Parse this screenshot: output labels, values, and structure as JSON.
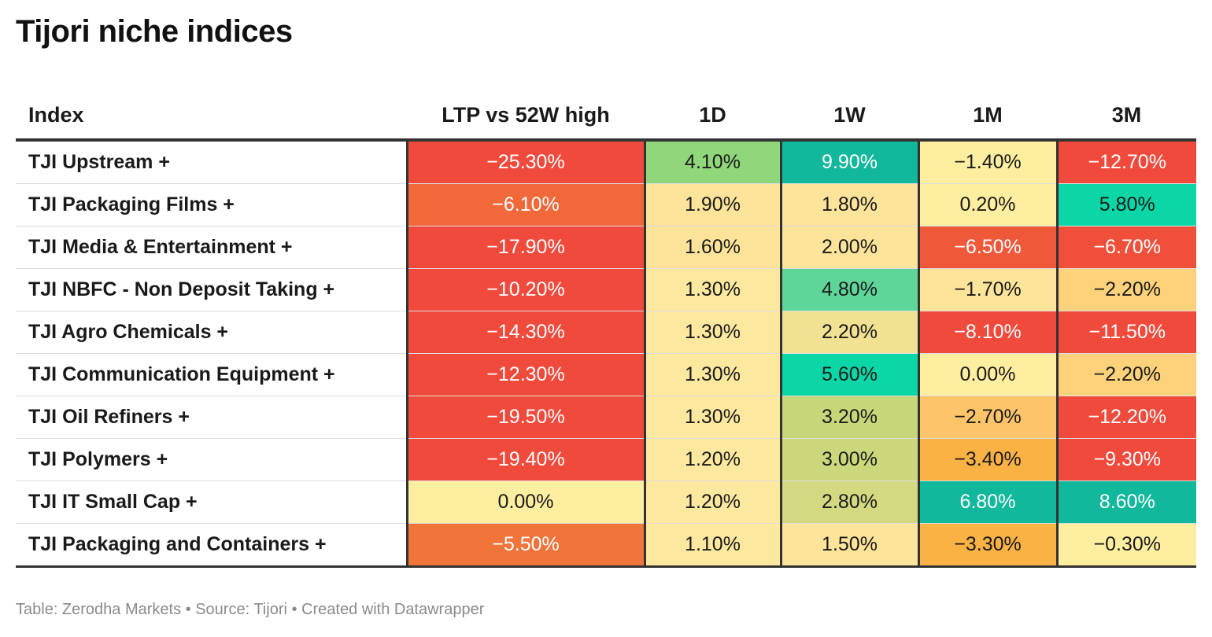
{
  "title": "Tijori niche indices",
  "footer": "Table: Zerodha Markets • Source: Tijori • Created with Datawrapper",
  "colors": {
    "deep_red": "#ef4a3c",
    "red_orange": "#f0583a",
    "orange": "#f1743a",
    "amber": "#fbb244",
    "light_amber": "#fdd27a",
    "pale_yellow": "#fdeea0",
    "olive": "#ccd77c",
    "light_green": "#90d67a",
    "mint": "#5ed69a",
    "teal": "#11b89c",
    "aqua": "#0bd6a6"
  },
  "chart_data": {
    "type": "table",
    "columns": [
      "Index",
      "LTP vs 52W high",
      "1D",
      "1W",
      "1M",
      "3M"
    ],
    "rows": [
      {
        "index": "TJI Upstream +",
        "values": [
          "−25.30%",
          "4.10%",
          "9.90%",
          "−1.40%",
          "−12.70%"
        ],
        "colors": [
          "#ef4a3c",
          "#90d67a",
          "#11b89c",
          "#fdeea0",
          "#ef4a3c"
        ],
        "text_colors": [
          "#ffffff",
          "#1a1a1a",
          "#ffffff",
          "#1a1a1a",
          "#ffffff"
        ]
      },
      {
        "index": "TJI Packaging Films +",
        "values": [
          "−6.10%",
          "1.90%",
          "1.80%",
          "0.20%",
          "5.80%"
        ],
        "colors": [
          "#f1693a",
          "#fde49a",
          "#fde49a",
          "#fdeea0",
          "#0bd6a6"
        ],
        "text_colors": [
          "#ffffff",
          "#1a1a1a",
          "#1a1a1a",
          "#1a1a1a",
          "#1a1a1a"
        ]
      },
      {
        "index": "TJI Media & Entertainment +",
        "values": [
          "−17.90%",
          "1.60%",
          "2.00%",
          "−6.50%",
          "−6.70%"
        ],
        "colors": [
          "#ef4a3c",
          "#fde49a",
          "#fde49a",
          "#f0583a",
          "#f0503a"
        ],
        "text_colors": [
          "#ffffff",
          "#1a1a1a",
          "#1a1a1a",
          "#ffffff",
          "#ffffff"
        ]
      },
      {
        "index": "TJI NBFC - Non Deposit Taking +",
        "values": [
          "−10.20%",
          "1.30%",
          "4.80%",
          "−1.70%",
          "−2.20%"
        ],
        "colors": [
          "#ef4a3c",
          "#fde8a0",
          "#5ed69a",
          "#fde49a",
          "#fdd27a"
        ],
        "text_colors": [
          "#ffffff",
          "#1a1a1a",
          "#1a1a1a",
          "#1a1a1a",
          "#1a1a1a"
        ]
      },
      {
        "index": "TJI Agro Chemicals +",
        "values": [
          "−14.30%",
          "1.30%",
          "2.20%",
          "−8.10%",
          "−11.50%"
        ],
        "colors": [
          "#ef4a3c",
          "#fde8a0",
          "#f1e192",
          "#ef4a3c",
          "#ef4a3c"
        ],
        "text_colors": [
          "#ffffff",
          "#1a1a1a",
          "#1a1a1a",
          "#ffffff",
          "#ffffff"
        ]
      },
      {
        "index": "TJI Communication Equipment +",
        "values": [
          "−12.30%",
          "1.30%",
          "5.60%",
          "0.00%",
          "−2.20%"
        ],
        "colors": [
          "#ef4a3c",
          "#fde8a0",
          "#0bd6a6",
          "#fdeea0",
          "#fdd27a"
        ],
        "text_colors": [
          "#ffffff",
          "#1a1a1a",
          "#1a1a1a",
          "#1a1a1a",
          "#1a1a1a"
        ]
      },
      {
        "index": "TJI Oil Refiners +",
        "values": [
          "−19.50%",
          "1.30%",
          "3.20%",
          "−2.70%",
          "−12.20%"
        ],
        "colors": [
          "#ef4a3c",
          "#fde8a0",
          "#c8d67a",
          "#fdc46a",
          "#ef4a3c"
        ],
        "text_colors": [
          "#ffffff",
          "#1a1a1a",
          "#1a1a1a",
          "#1a1a1a",
          "#ffffff"
        ]
      },
      {
        "index": "TJI Polymers +",
        "values": [
          "−19.40%",
          "1.20%",
          "3.00%",
          "−3.40%",
          "−9.30%"
        ],
        "colors": [
          "#ef4a3c",
          "#fde8a0",
          "#ccd77c",
          "#fbb244",
          "#ef4a3c"
        ],
        "text_colors": [
          "#ffffff",
          "#1a1a1a",
          "#1a1a1a",
          "#1a1a1a",
          "#ffffff"
        ]
      },
      {
        "index": "TJI IT Small Cap +",
        "values": [
          "0.00%",
          "1.20%",
          "2.80%",
          "6.80%",
          "8.60%"
        ],
        "colors": [
          "#fdeea0",
          "#fde8a0",
          "#d2d980",
          "#11b89c",
          "#11b89c"
        ],
        "text_colors": [
          "#1a1a1a",
          "#1a1a1a",
          "#1a1a1a",
          "#ffffff",
          "#ffffff"
        ]
      },
      {
        "index": "TJI Packaging and Containers +",
        "values": [
          "−5.50%",
          "1.10%",
          "1.50%",
          "−3.30%",
          "−0.30%"
        ],
        "colors": [
          "#f1743a",
          "#fde8a0",
          "#fde49a",
          "#fbb244",
          "#fdeea0"
        ],
        "text_colors": [
          "#ffffff",
          "#1a1a1a",
          "#1a1a1a",
          "#1a1a1a",
          "#1a1a1a"
        ]
      }
    ]
  }
}
